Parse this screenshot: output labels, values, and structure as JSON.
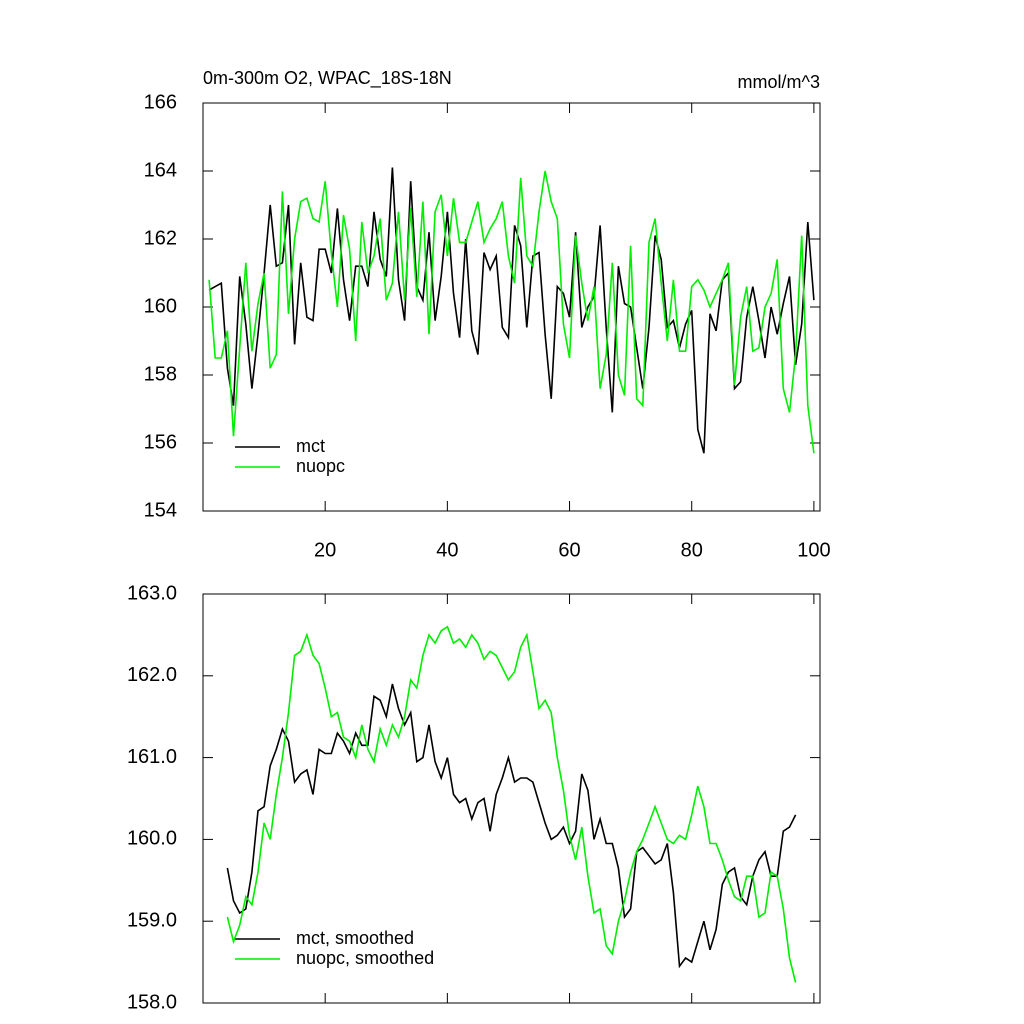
{
  "chart_data": [
    {
      "type": "line",
      "title": "0m-300m O2, WPAC_18S-18N",
      "units": "mmol/m^3",
      "xlim": [
        0,
        101
      ],
      "xticks": [
        20,
        40,
        60,
        80,
        100
      ],
      "xtick_labels": true,
      "ylim": [
        154,
        166
      ],
      "yticks": [
        154,
        156,
        158,
        160,
        162,
        164,
        166
      ],
      "legend": "lower left",
      "x": [
        1,
        2,
        3,
        4,
        5,
        6,
        7,
        8,
        9,
        10,
        11,
        12,
        13,
        14,
        15,
        16,
        17,
        18,
        19,
        20,
        21,
        22,
        23,
        24,
        25,
        26,
        27,
        28,
        29,
        30,
        31,
        32,
        33,
        34,
        35,
        36,
        37,
        38,
        39,
        40,
        41,
        42,
        43,
        44,
        45,
        46,
        47,
        48,
        49,
        50,
        51,
        52,
        53,
        54,
        55,
        56,
        57,
        58,
        59,
        60,
        61,
        62,
        63,
        64,
        65,
        66,
        67,
        68,
        69,
        70,
        71,
        72,
        73,
        74,
        75,
        76,
        77,
        78,
        79,
        80,
        81,
        82,
        83,
        84,
        85,
        86,
        87,
        88,
        89,
        90,
        91,
        92,
        93,
        94,
        95,
        96,
        97,
        98,
        99,
        100
      ],
      "series": [
        {
          "name": "mct",
          "color": "#000000",
          "values": [
            160.5,
            160.6,
            160.7,
            158.2,
            157.1,
            160.9,
            159.5,
            157.6,
            159.2,
            161,
            163,
            161.2,
            161.3,
            163,
            158.9,
            161.3,
            159.7,
            159.6,
            161.7,
            161.7,
            161,
            162.9,
            160.8,
            159.6,
            161.2,
            161.2,
            160.6,
            162.8,
            161.4,
            160.9,
            164.1,
            160.8,
            159.6,
            163.7,
            160.6,
            160.2,
            162.2,
            159.6,
            160.9,
            162.8,
            160.4,
            159.1,
            162.0,
            159.3,
            158.6,
            161.6,
            161.1,
            161.5,
            159.4,
            159.1,
            162.4,
            161.8,
            159.4,
            161.5,
            161.6,
            159.2,
            157.3,
            160.6,
            160.4,
            159.7,
            162.2,
            159.4,
            160.0,
            160.3,
            162.4,
            159.4,
            156.9,
            161.2,
            160.1,
            160.0,
            158.8,
            157.6,
            159.4,
            162.1,
            161.4,
            159.4,
            159.6,
            158.8,
            159.5,
            159.9,
            156.4,
            155.7,
            159.8,
            159.3,
            160.8,
            161.0,
            157.6,
            157.8,
            159.7,
            160.6,
            159.6,
            158.5,
            160.0,
            159.2,
            160.1,
            160.9,
            158.3,
            159.5,
            162.5,
            160.2
          ]
        },
        {
          "name": "nuopc",
          "color": "#00ee00",
          "values": [
            160.8,
            158.5,
            158.5,
            159.3,
            156.2,
            158.8,
            161.3,
            158.7,
            160.1,
            161.0,
            158.2,
            158.6,
            163.4,
            159.8,
            162.0,
            163.1,
            163.2,
            162.6,
            162.5,
            163.7,
            161.6,
            160.0,
            162.7,
            161.7,
            159.0,
            162.5,
            161.0,
            161.5,
            162.6,
            160.2,
            160.7,
            162.8,
            160.2,
            162.9,
            160.3,
            163.1,
            159.2,
            162.8,
            163.3,
            161.5,
            163.2,
            161.9,
            161.9,
            162.5,
            163.1,
            161.9,
            162.3,
            162.6,
            163.1,
            161.5,
            160.7,
            163.8,
            161.5,
            161.2,
            162.8,
            164.0,
            163.1,
            162.6,
            159.5,
            158.5,
            162.1,
            160.7,
            159.6,
            160.6,
            157.6,
            158.6,
            161.3,
            158.0,
            157.4,
            161.8,
            157.3,
            157.1,
            161.9,
            162.6,
            160.7,
            159.0,
            160.8,
            158.7,
            158.7,
            160.6,
            160.8,
            160.5,
            160.0,
            160.4,
            160.8,
            161.3,
            157.7,
            159.7,
            160.6,
            158.7,
            158.8,
            160.0,
            160.4,
            161.4,
            157.6,
            156.9,
            158.6,
            162.1,
            157.1,
            155.7
          ]
        }
      ]
    },
    {
      "type": "line",
      "xlim": [
        0,
        101
      ],
      "xticks": [
        20,
        40,
        60,
        80,
        100
      ],
      "xtick_labels": false,
      "ylim": [
        158,
        163
      ],
      "yticks": [
        {
          "value": 158,
          "label": "158.0"
        },
        {
          "value": 159,
          "label": "159.0"
        },
        {
          "value": 160,
          "label": "160.0"
        },
        {
          "value": 161,
          "label": "161.0"
        },
        {
          "value": 162,
          "label": "162.0"
        },
        {
          "value": 163,
          "label": "163.0"
        }
      ],
      "legend": "lower left",
      "x": [
        4,
        5,
        6,
        7,
        8,
        9,
        10,
        11,
        12,
        13,
        14,
        15,
        16,
        17,
        18,
        19,
        20,
        21,
        22,
        23,
        24,
        25,
        26,
        27,
        28,
        29,
        30,
        31,
        32,
        33,
        34,
        35,
        36,
        37,
        38,
        39,
        40,
        41,
        42,
        43,
        44,
        45,
        46,
        47,
        48,
        49,
        50,
        51,
        52,
        53,
        54,
        55,
        56,
        57,
        58,
        59,
        60,
        61,
        62,
        63,
        64,
        65,
        66,
        67,
        68,
        69,
        70,
        71,
        72,
        73,
        74,
        75,
        76,
        77,
        78,
        79,
        80,
        81,
        82,
        83,
        84,
        85,
        86,
        87,
        88,
        89,
        90,
        91,
        92,
        93,
        94,
        95,
        96,
        97
      ],
      "series": [
        {
          "name": "mct, smoothed",
          "color": "#000000",
          "values": [
            159.65,
            159.25,
            159.1,
            159.15,
            159.6,
            160.35,
            160.4,
            160.9,
            161.1,
            161.35,
            161.2,
            160.7,
            160.8,
            160.85,
            160.55,
            161.1,
            161.05,
            161.05,
            161.3,
            161.2,
            161.05,
            161.3,
            161.15,
            161.15,
            161.75,
            161.7,
            161.5,
            161.9,
            161.6,
            161.4,
            161.55,
            160.95,
            161.0,
            161.4,
            160.95,
            160.75,
            161.0,
            160.55,
            160.45,
            160.5,
            160.25,
            160.45,
            160.5,
            160.1,
            160.55,
            160.75,
            161.0,
            160.7,
            160.75,
            160.75,
            160.7,
            160.45,
            160.2,
            160.0,
            160.05,
            160.15,
            159.95,
            160.1,
            160.8,
            160.6,
            160.0,
            160.25,
            159.95,
            159.95,
            159.65,
            159.05,
            159.15,
            159.85,
            159.9,
            159.8,
            159.7,
            159.75,
            159.95,
            159.35,
            158.45,
            158.55,
            158.5,
            158.75,
            159.0,
            158.65,
            158.9,
            159.45,
            159.6,
            159.65,
            159.3,
            159.2,
            159.55,
            159.75,
            159.85,
            159.55,
            159.55,
            160.1,
            160.15,
            160.3
          ]
        },
        {
          "name": "nuopc, smoothed",
          "color": "#00ee00",
          "values": [
            159.05,
            158.75,
            158.95,
            159.3,
            159.2,
            159.6,
            160.2,
            160.0,
            160.55,
            161.0,
            161.55,
            162.25,
            162.3,
            162.5,
            162.25,
            162.15,
            161.85,
            161.5,
            161.55,
            161.25,
            161.2,
            161.0,
            161.4,
            161.1,
            160.95,
            161.35,
            161.15,
            161.4,
            161.25,
            161.5,
            161.95,
            161.85,
            162.25,
            162.5,
            162.4,
            162.55,
            162.6,
            162.4,
            162.45,
            162.35,
            162.5,
            162.4,
            162.2,
            162.3,
            162.25,
            162.1,
            161.95,
            162.05,
            162.35,
            162.5,
            162.05,
            161.6,
            161.7,
            161.55,
            161.0,
            160.6,
            160.05,
            159.75,
            160.15,
            159.55,
            159.1,
            159.15,
            158.7,
            158.6,
            159.0,
            159.25,
            159.6,
            159.85,
            160.0,
            160.2,
            160.4,
            160.2,
            160.0,
            159.95,
            160.05,
            160.0,
            160.3,
            160.65,
            160.4,
            159.95,
            159.95,
            159.75,
            159.5,
            159.3,
            159.25,
            159.55,
            159.55,
            159.05,
            159.1,
            159.6,
            159.55,
            159.15,
            158.55,
            158.25
          ]
        }
      ]
    }
  ]
}
